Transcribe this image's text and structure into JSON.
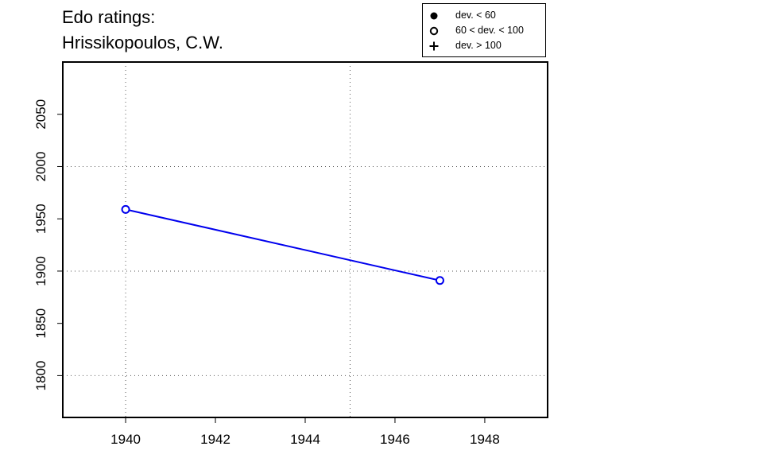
{
  "chart_data": {
    "type": "line",
    "title_lines": [
      "Edo ratings:",
      "Hrissikopoulos, C.W."
    ],
    "xlabel": "",
    "ylabel": "",
    "xlim": [
      1938.6,
      1949.4
    ],
    "ylim": [
      1760,
      2100
    ],
    "x_ticks": [
      1940,
      1942,
      1944,
      1946,
      1948
    ],
    "y_ticks": [
      1800,
      1850,
      1900,
      1950,
      2000,
      2050
    ],
    "grid_x": [
      1940,
      1945
    ],
    "grid_y": [
      1800,
      1900,
      2000
    ],
    "series": [
      {
        "color": "#0000ee",
        "points": [
          {
            "x": 1940,
            "y": 1959,
            "marker": "open-circle"
          },
          {
            "x": 1947,
            "y": 1891,
            "marker": "open-circle"
          }
        ]
      }
    ],
    "legend": {
      "position": "top-right",
      "entries": [
        {
          "label": "dev. < 60",
          "marker": "filled-circle"
        },
        {
          "label": "60 < dev. < 100",
          "marker": "open-circle"
        },
        {
          "label": "dev. > 100",
          "marker": "plus"
        }
      ]
    }
  }
}
